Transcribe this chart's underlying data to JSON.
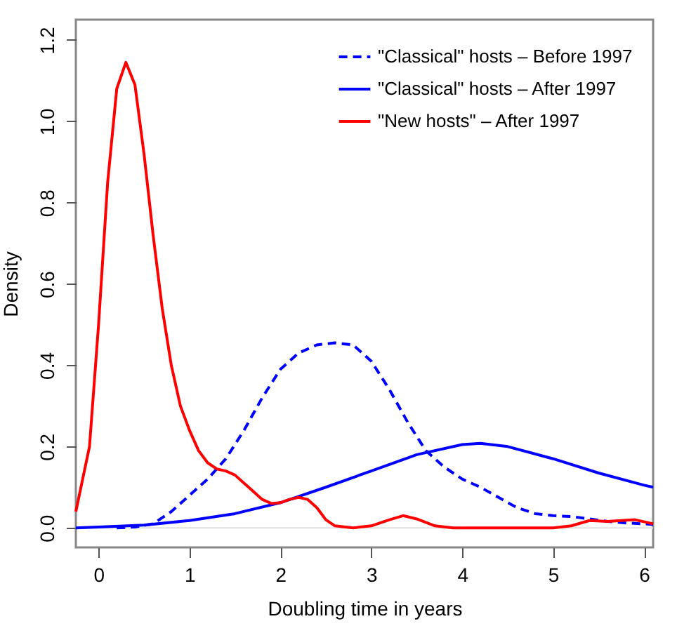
{
  "chart_data": {
    "type": "line",
    "xlabel": "Doubling time in years",
    "ylabel": "Density",
    "xlim": [
      -0.25,
      6.1
    ],
    "xticks": [
      0,
      1,
      2,
      3,
      4,
      5,
      6
    ],
    "ylim": [
      -0.048,
      1.25
    ],
    "yticks": [
      {
        "value": 0,
        "label": "0.0"
      },
      0.2,
      0.4,
      0.6,
      0.8,
      {
        "value": 1,
        "label": "1.0"
      },
      1.2
    ],
    "ref_lines": [
      {
        "axis": "y",
        "value": 0,
        "color": "#e0e0e0"
      }
    ],
    "grid": false,
    "legend": "top right",
    "marker": "none",
    "series": [
      {
        "name": "\"Classical\" hosts – Before 1997",
        "color": "#0000ff",
        "line_style": "dashed",
        "x": [
          0.2,
          0.4,
          0.6,
          0.8,
          1.0,
          1.2,
          1.4,
          1.6,
          1.8,
          2.0,
          2.2,
          2.4,
          2.6,
          2.8,
          3.0,
          3.2,
          3.4,
          3.6,
          3.8,
          4.0,
          4.2,
          4.4,
          4.6,
          4.8,
          5.0,
          5.2,
          5.4,
          5.6,
          5.8,
          6.0,
          6.1
        ],
        "values": [
          0.0,
          0.002,
          0.01,
          0.04,
          0.08,
          0.12,
          0.17,
          0.24,
          0.32,
          0.39,
          0.43,
          0.45,
          0.455,
          0.45,
          0.41,
          0.34,
          0.26,
          0.19,
          0.15,
          0.12,
          0.1,
          0.075,
          0.05,
          0.035,
          0.03,
          0.028,
          0.022,
          0.016,
          0.012,
          0.01,
          0.008
        ]
      },
      {
        "name": "\"Classical\" hosts – After 1997",
        "color": "#0000ff",
        "line_style": "solid",
        "x": [
          -0.25,
          0.0,
          0.5,
          1.0,
          1.5,
          2.0,
          2.5,
          3.0,
          3.5,
          4.0,
          4.2,
          4.5,
          5.0,
          5.5,
          6.0,
          6.1
        ],
        "values": [
          0.0,
          0.002,
          0.007,
          0.018,
          0.035,
          0.062,
          0.1,
          0.14,
          0.18,
          0.205,
          0.208,
          0.2,
          0.17,
          0.135,
          0.105,
          0.1
        ]
      },
      {
        "name": "\"New hosts\" – After 1997",
        "color": "#ff0000",
        "line_style": "solid",
        "x": [
          -0.25,
          -0.1,
          0.0,
          0.1,
          0.2,
          0.3,
          0.4,
          0.5,
          0.6,
          0.7,
          0.8,
          0.9,
          1.0,
          1.1,
          1.2,
          1.3,
          1.4,
          1.5,
          1.6,
          1.7,
          1.8,
          1.9,
          2.0,
          2.1,
          2.2,
          2.3,
          2.4,
          2.5,
          2.6,
          2.8,
          3.0,
          3.2,
          3.35,
          3.5,
          3.7,
          3.9,
          5.0,
          5.2,
          5.4,
          5.6,
          5.9,
          6.1
        ],
        "values": [
          0.04,
          0.2,
          0.5,
          0.85,
          1.08,
          1.145,
          1.09,
          0.92,
          0.72,
          0.54,
          0.4,
          0.3,
          0.24,
          0.19,
          0.16,
          0.145,
          0.14,
          0.13,
          0.11,
          0.09,
          0.07,
          0.06,
          0.062,
          0.07,
          0.075,
          0.07,
          0.05,
          0.02,
          0.005,
          0.0,
          0.005,
          0.02,
          0.03,
          0.022,
          0.005,
          0.0,
          0.0,
          0.005,
          0.018,
          0.016,
          0.02,
          0.01
        ]
      }
    ]
  }
}
